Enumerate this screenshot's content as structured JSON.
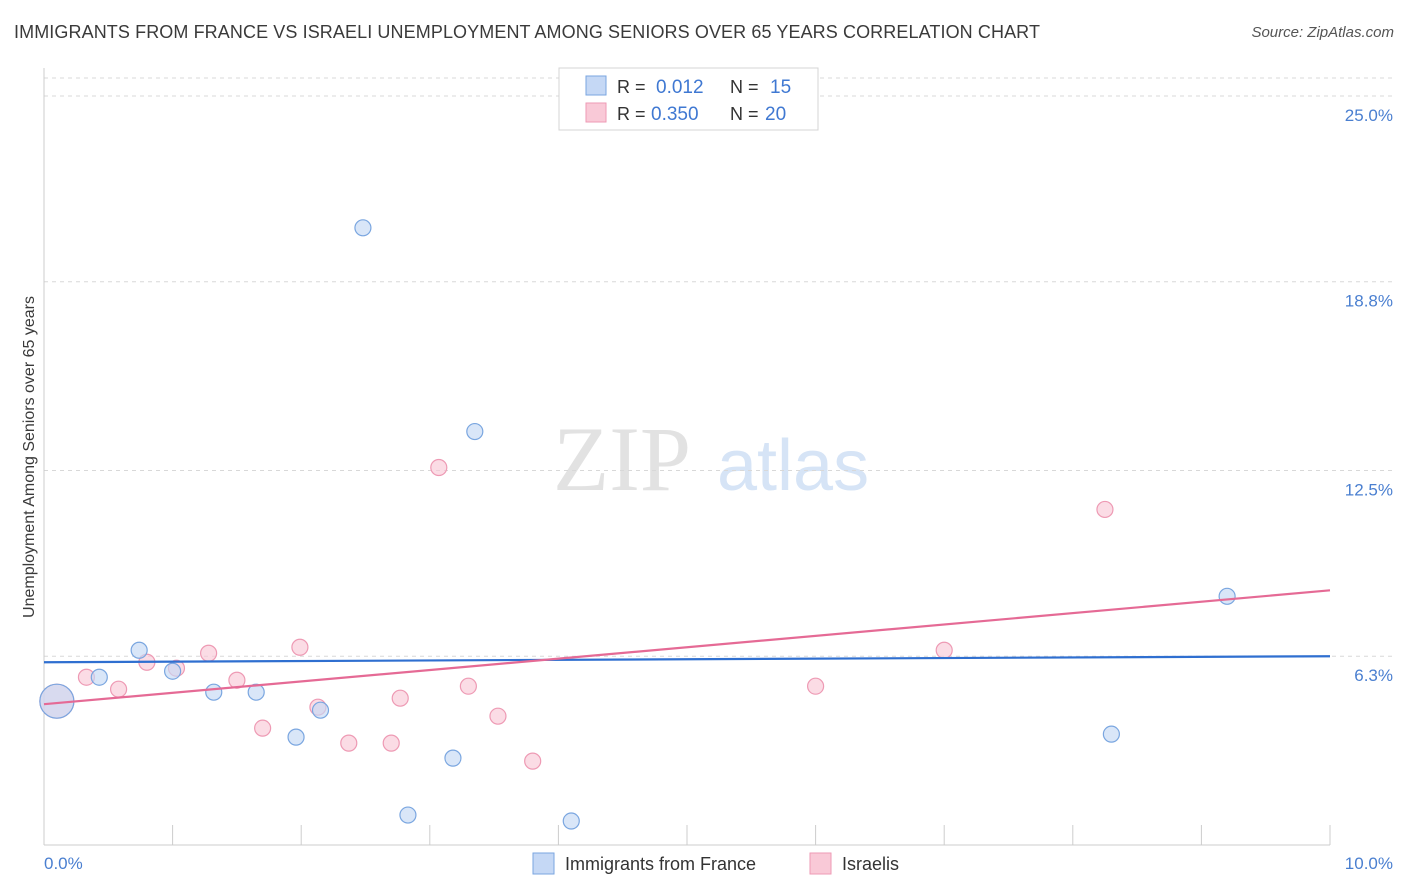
{
  "title": "IMMIGRANTS FROM FRANCE VS ISRAELI UNEMPLOYMENT AMONG SENIORS OVER 65 YEARS CORRELATION CHART",
  "source": "Source: ZipAtlas.com",
  "watermark": {
    "zip": "ZIP",
    "atlas": "atlas"
  },
  "colors": {
    "blue_fill": "#c5d8f5",
    "blue_stroke": "#7aa6e0",
    "blue_line": "#2f6fd0",
    "pink_fill": "#f9c9d7",
    "pink_stroke": "#ee9ab4",
    "pink_line": "#e56a95",
    "tick_label": "#4a7fd0",
    "grid": "#d8d8d8"
  },
  "legend": {
    "rows": [
      {
        "r_label": "R =",
        "r_value": "0.012",
        "n_label": "N =",
        "n_value": "15"
      },
      {
        "r_label": "R =",
        "r_value": "0.350",
        "n_label": "N =",
        "n_value": "20"
      }
    ]
  },
  "chart_data": {
    "type": "scatter",
    "title": "IMMIGRANTS FROM FRANCE VS ISRAELI UNEMPLOYMENT AMONG SENIORS OVER 65 YEARS CORRELATION CHART",
    "xlabel": "",
    "ylabel": "Unemployment Among Seniors over 65 years",
    "xlim": [
      0,
      10
    ],
    "ylim": [
      0,
      25.6
    ],
    "x_tick_labels": [
      "0.0%",
      "10.0%"
    ],
    "y_ticks": [
      6.3,
      12.5,
      18.8,
      25.0
    ],
    "y_tick_labels": [
      "6.3%",
      "12.5%",
      "18.8%",
      "25.0%"
    ],
    "grid": true,
    "legend_position": "top-center",
    "series": [
      {
        "name": "Immigrants from France",
        "color": "blue",
        "points": [
          {
            "x": 0.1,
            "y": 4.8,
            "size": "large"
          },
          {
            "x": 0.43,
            "y": 5.6
          },
          {
            "x": 0.74,
            "y": 6.5
          },
          {
            "x": 1.0,
            "y": 5.8
          },
          {
            "x": 1.32,
            "y": 5.1
          },
          {
            "x": 1.65,
            "y": 5.1
          },
          {
            "x": 1.96,
            "y": 3.6
          },
          {
            "x": 2.15,
            "y": 4.5
          },
          {
            "x": 2.48,
            "y": 20.6
          },
          {
            "x": 2.83,
            "y": 1.0
          },
          {
            "x": 3.18,
            "y": 2.9
          },
          {
            "x": 3.35,
            "y": 13.8
          },
          {
            "x": 4.1,
            "y": 0.8
          },
          {
            "x": 8.3,
            "y": 3.7
          },
          {
            "x": 9.2,
            "y": 8.3
          }
        ],
        "trend": {
          "x": [
            0.0,
            10.0
          ],
          "y": [
            6.1,
            6.3
          ]
        }
      },
      {
        "name": "Israelis",
        "color": "pink",
        "points": [
          {
            "x": 0.1,
            "y": 4.8,
            "size": "large"
          },
          {
            "x": 0.33,
            "y": 5.6
          },
          {
            "x": 0.58,
            "y": 5.2
          },
          {
            "x": 0.8,
            "y": 6.1
          },
          {
            "x": 1.03,
            "y": 5.9
          },
          {
            "x": 1.28,
            "y": 6.4
          },
          {
            "x": 1.5,
            "y": 5.5
          },
          {
            "x": 1.7,
            "y": 3.9
          },
          {
            "x": 1.99,
            "y": 6.6
          },
          {
            "x": 2.13,
            "y": 4.6
          },
          {
            "x": 2.37,
            "y": 3.4
          },
          {
            "x": 2.7,
            "y": 3.4
          },
          {
            "x": 2.77,
            "y": 4.9
          },
          {
            "x": 3.07,
            "y": 12.6
          },
          {
            "x": 3.3,
            "y": 5.3
          },
          {
            "x": 3.53,
            "y": 4.3
          },
          {
            "x": 3.8,
            "y": 2.8
          },
          {
            "x": 6.0,
            "y": 5.3
          },
          {
            "x": 7.0,
            "y": 6.5
          },
          {
            "x": 8.25,
            "y": 11.2
          }
        ],
        "trend": {
          "x": [
            0.0,
            10.0
          ],
          "y": [
            4.7,
            8.5
          ]
        }
      }
    ]
  }
}
